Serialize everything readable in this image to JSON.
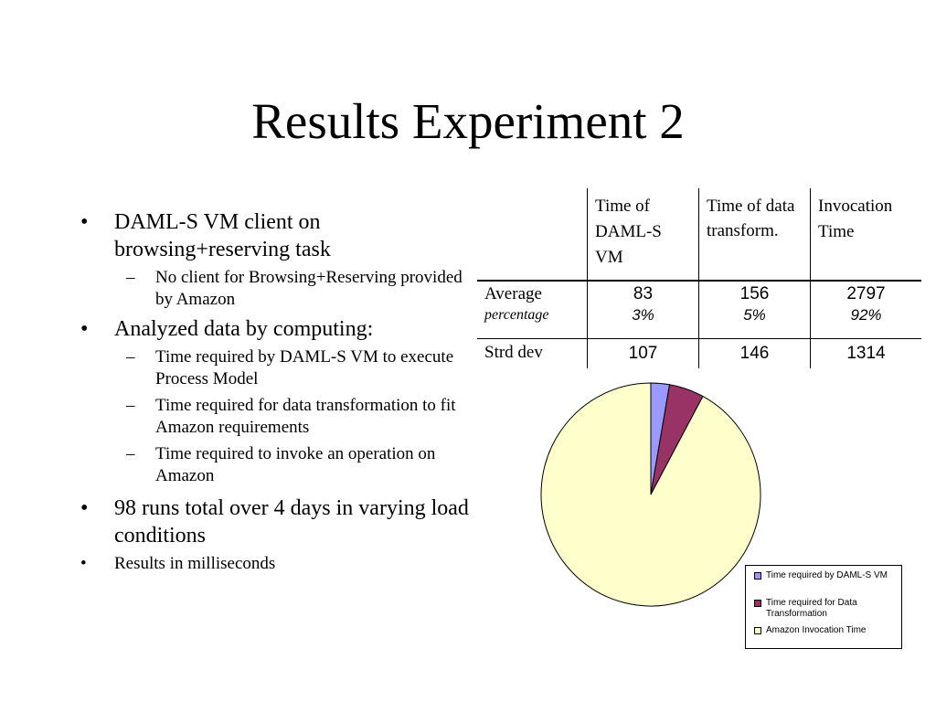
{
  "slide": {
    "title": "Results Experiment 2",
    "bullets": [
      {
        "mark": "•",
        "text": "DAML-S VM client on browsing+reserving task"
      },
      {
        "mark": "–",
        "text": "No client for Browsing+Reserving provided by Amazon"
      },
      {
        "mark": "•",
        "text": "Analyzed data by computing:"
      },
      {
        "mark": "–",
        "text": "Time required by DAML-S VM to execute Process Model"
      },
      {
        "mark": "–",
        "text": "Time required for data transformation to fit Amazon requirements"
      },
      {
        "mark": "–",
        "text": "Time required to invoke an operation on Amazon"
      },
      {
        "mark": "•",
        "text": "98 runs total over 4 days in varying load conditions"
      },
      {
        "mark": "•",
        "text": "Results in milliseconds"
      }
    ]
  },
  "table": {
    "headers": [
      "",
      "Time of DAML-S VM",
      "Time of data transform.",
      "Invocation Time"
    ],
    "rows": [
      {
        "label": "Average",
        "sublabel": "percentage",
        "values": [
          "83",
          "156",
          "2797"
        ],
        "percentages": [
          "3%",
          "5%",
          "92%"
        ]
      },
      {
        "label": "Strd dev",
        "values": [
          "107",
          "146",
          "1314"
        ]
      }
    ]
  },
  "chart_data": {
    "type": "pie",
    "slices": [
      {
        "label": "Time required by DAML-S VM",
        "value": 83,
        "color": "#9999ff"
      },
      {
        "label": "Time required for Data Transformation",
        "value": 156,
        "color": "#993366"
      },
      {
        "label": "Amazon Invocation Time",
        "value": 2797,
        "color": "#ffffcc"
      }
    ],
    "legend_position": "bottom-right"
  }
}
